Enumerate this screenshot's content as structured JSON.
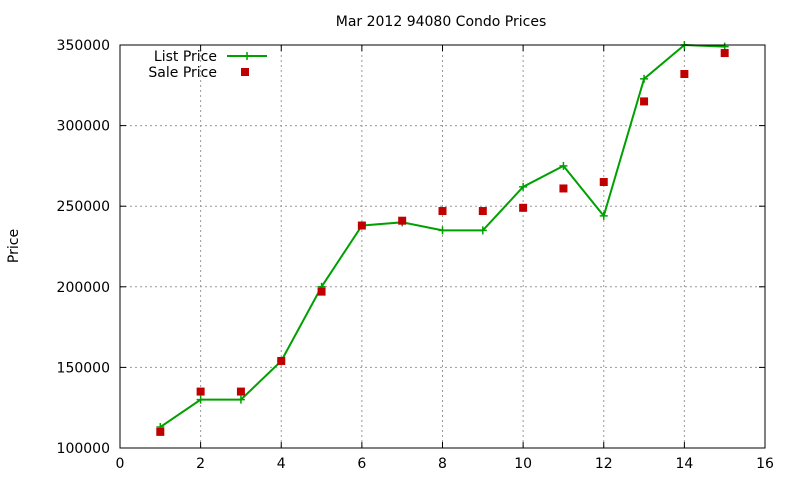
{
  "chart_data": {
    "type": "line",
    "title": "Mar 2012 94080 Condo Prices",
    "xlabel": "",
    "ylabel": "Price",
    "xlim": [
      0,
      16
    ],
    "ylim": [
      100000,
      350000
    ],
    "xticks": [
      0,
      2,
      4,
      6,
      8,
      10,
      12,
      14,
      16
    ],
    "yticks": [
      100000,
      150000,
      200000,
      250000,
      300000,
      350000
    ],
    "grid": true,
    "legend_position": "top-left",
    "series": [
      {
        "name": "List Price",
        "style": "line+cross",
        "color": "#00a000",
        "x": [
          1,
          2,
          3,
          4,
          5,
          6,
          7,
          8,
          9,
          10,
          11,
          12,
          13,
          14,
          15
        ],
        "values": [
          113000,
          130000,
          130000,
          154000,
          200000,
          238000,
          240000,
          235000,
          235000,
          262000,
          275000,
          244000,
          329000,
          350000,
          349000
        ]
      },
      {
        "name": "Sale Price",
        "style": "square",
        "color": "#c00000",
        "x": [
          1,
          2,
          3,
          4,
          5,
          6,
          7,
          8,
          9,
          10,
          11,
          12,
          13,
          14,
          15
        ],
        "values": [
          110000,
          135000,
          135000,
          154000,
          197000,
          238000,
          241000,
          247000,
          247000,
          249000,
          261000,
          265000,
          315000,
          332000,
          345000
        ]
      }
    ]
  }
}
